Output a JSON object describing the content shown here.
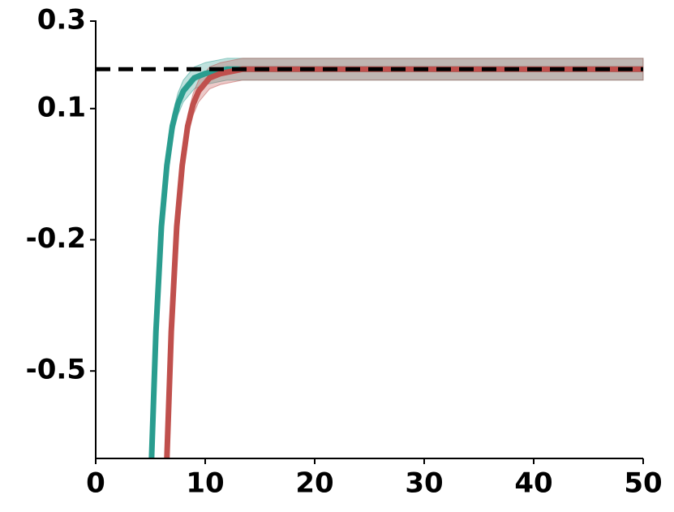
{
  "chart_data": {
    "type": "line",
    "series": [
      {
        "color": "#2a9d8f",
        "spread": 0.025,
        "x": [
          5.1,
          5.5,
          6,
          6.5,
          7,
          7.5,
          8,
          9,
          10,
          12,
          15,
          20,
          30,
          40,
          50
        ],
        "values": [
          -0.7,
          -0.41,
          -0.17,
          -0.03,
          0.06,
          0.11,
          0.14,
          0.17,
          0.18,
          0.19,
          0.19,
          0.19,
          0.19,
          0.19,
          0.19
        ]
      },
      {
        "color": "#c0504d",
        "spread": 0.025,
        "x": [
          6.5,
          6.9,
          7.4,
          7.9,
          8.4,
          8.9,
          9.4,
          10.4,
          11.4,
          13.4,
          15,
          20,
          30,
          40,
          50
        ],
        "values": [
          -0.7,
          -0.41,
          -0.17,
          -0.03,
          0.06,
          0.11,
          0.14,
          0.17,
          0.18,
          0.19,
          0.19,
          0.19,
          0.19,
          0.19,
          0.19
        ]
      }
    ],
    "reference": 0.19,
    "xlim": [
      0,
      50
    ],
    "xticks": [
      0,
      10,
      20,
      30,
      40,
      50
    ],
    "ylim": [
      -0.7,
      0.3
    ],
    "yticks": [
      0.3,
      0.1,
      -0.2,
      -0.5
    ]
  }
}
